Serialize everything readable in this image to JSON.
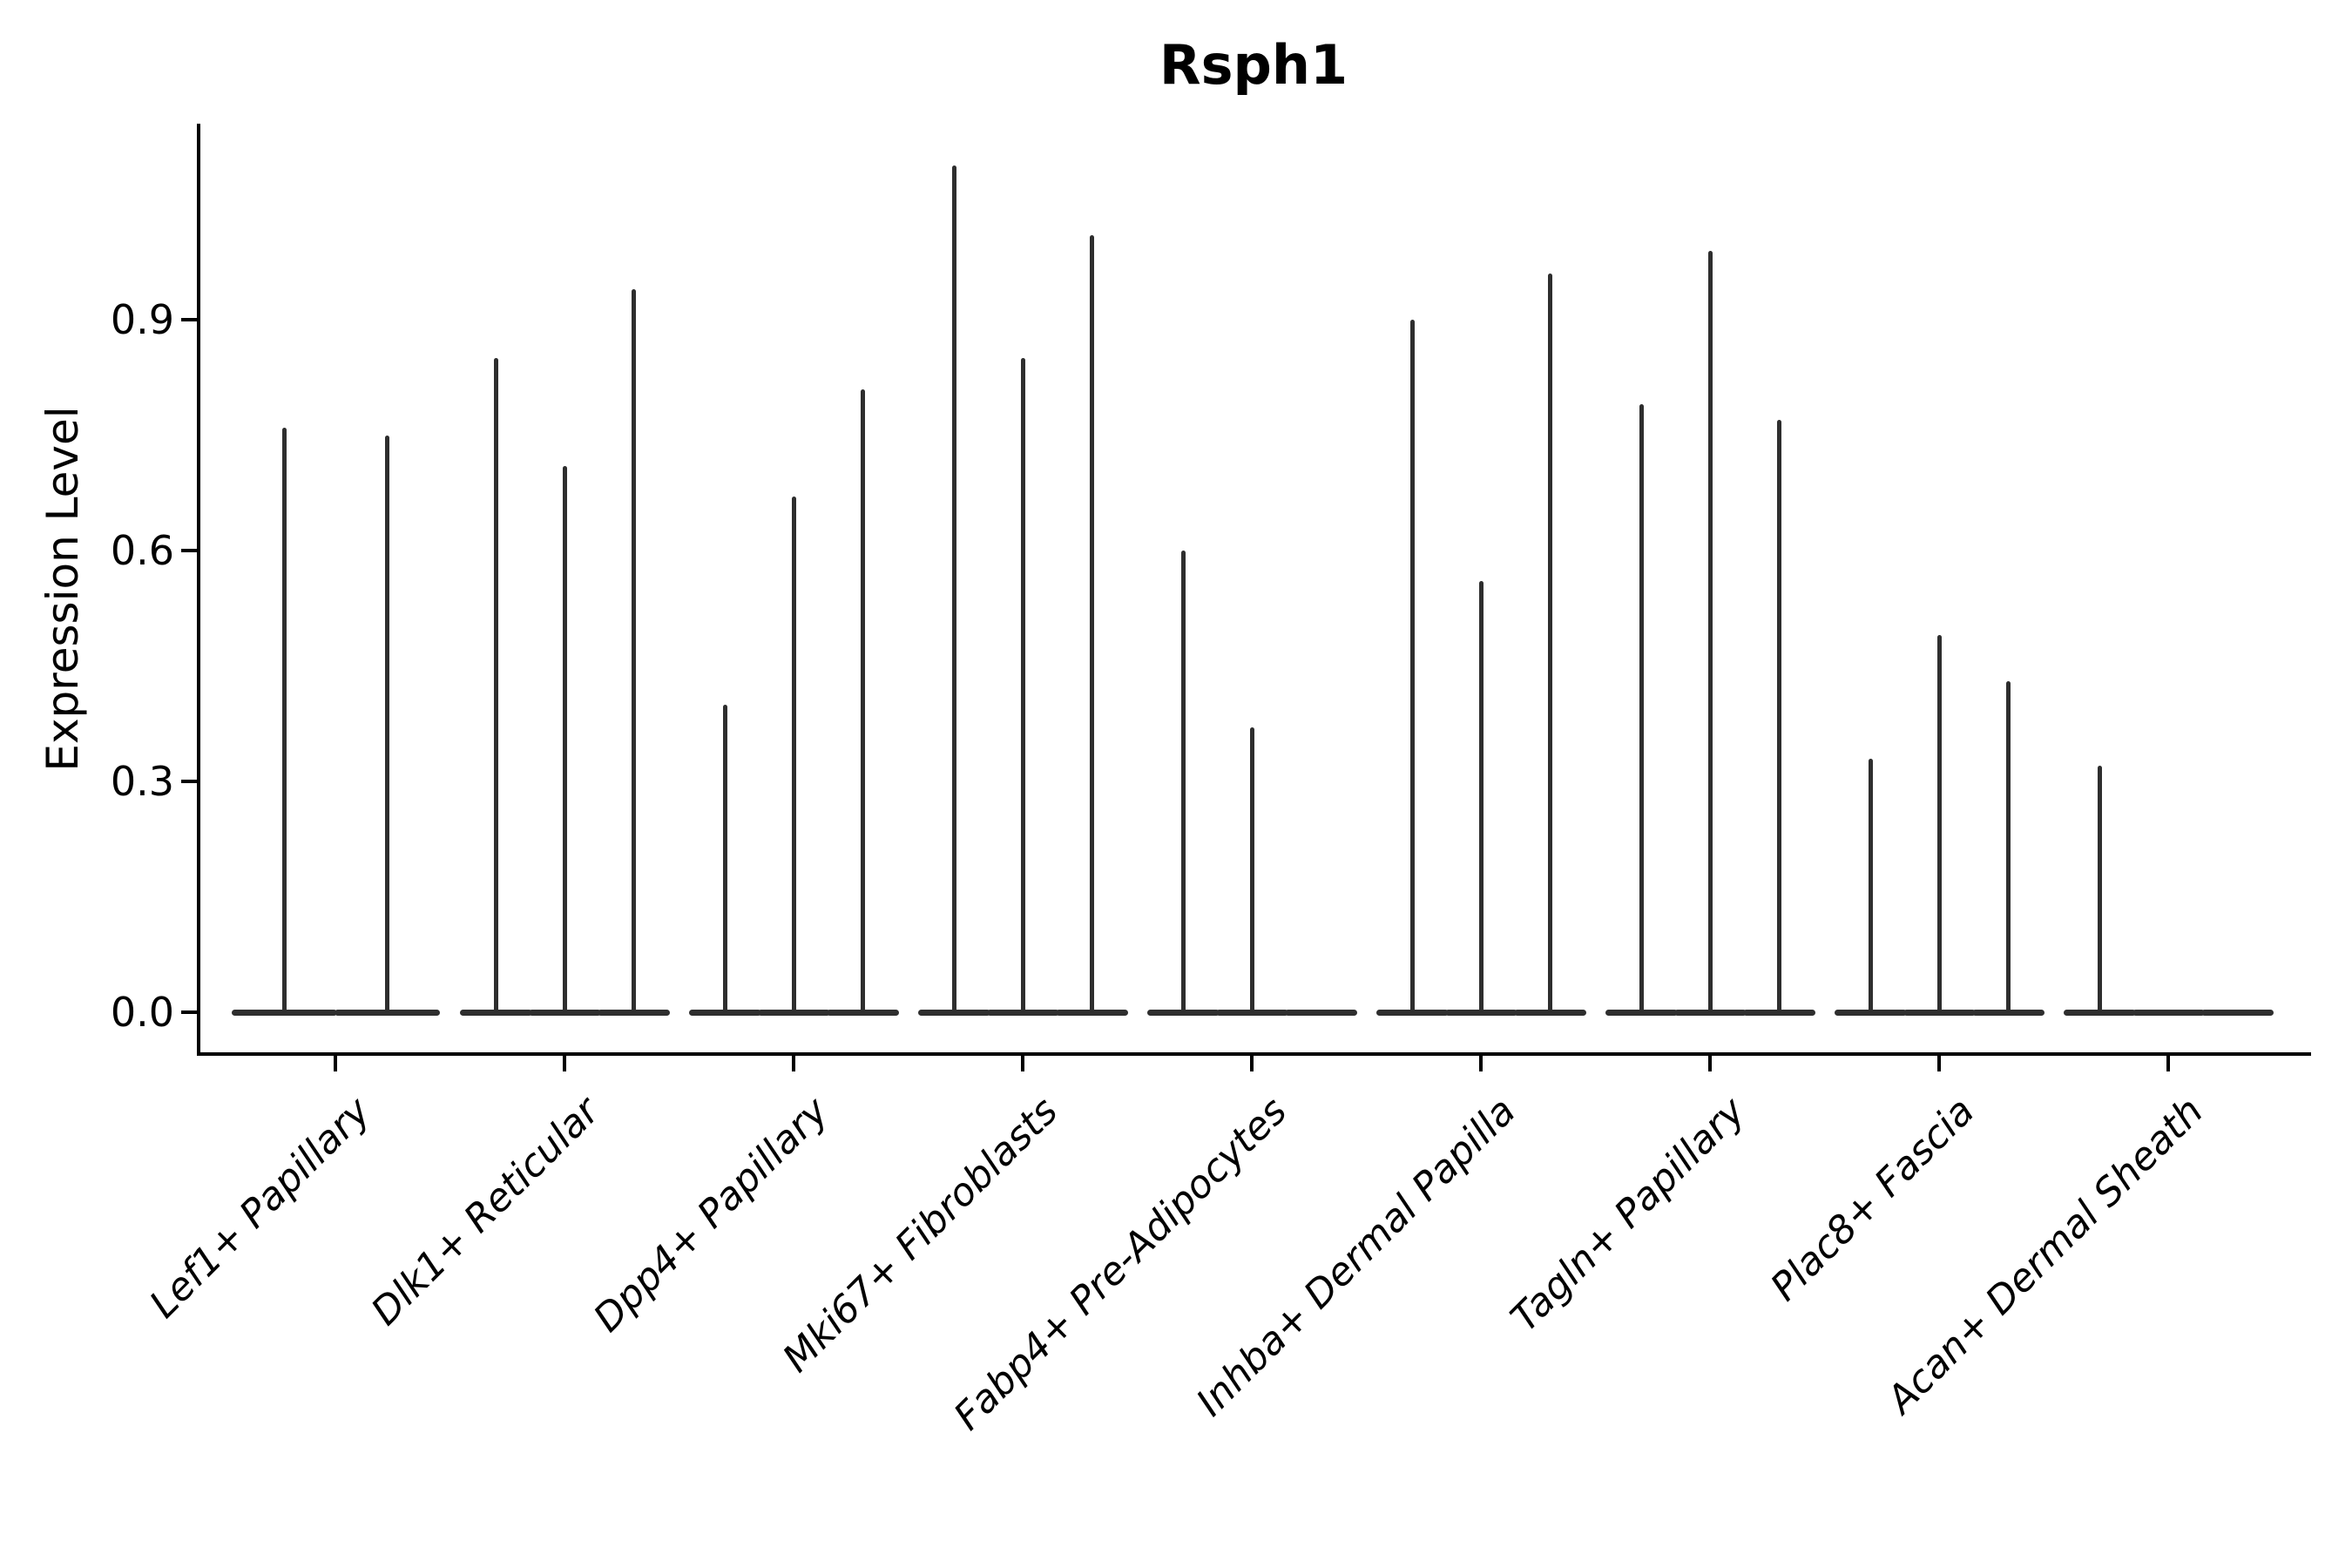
{
  "title": "Rsph1",
  "y_axis": {
    "label": "Expression Level",
    "tick_labels": [
      "0.0",
      "0.3",
      "0.6",
      "0.9"
    ],
    "tick_values": [
      0.0,
      0.3,
      0.6,
      0.9
    ]
  },
  "chart_data": {
    "type": "violin",
    "title": "Rsph1",
    "xlabel": "",
    "ylabel": "Expression Level",
    "ylim": [
      0,
      1.16
    ],
    "yticks": [
      0.0,
      0.3,
      0.6,
      0.9
    ],
    "ytick_labels": [
      "0.0",
      "0.3",
      "0.6",
      "0.9"
    ],
    "grid": false,
    "legend": "none",
    "violin_style": "needle-shaped violins (single-cell expression; density mass concentrated at 0, thin spike up to max expression)",
    "categories": [
      "Lef1+ Papillary",
      "Dlk1+ Reticular",
      "Dpp4+ Papillary",
      "Mki67+ Fibroblasts",
      "Fabp4+ Pre-Adipocytes",
      "Inhba+ Dermal Papilla",
      "Tagln+ Papillary",
      "Plac8+ Fascia",
      "Acan+ Dermal Sheath"
    ],
    "groups": [
      {
        "category": "Lef1+ Papillary",
        "violin_peak_values": [
          0.76,
          0.75
        ]
      },
      {
        "category": "Dlk1+ Reticular",
        "violin_peak_values": [
          0.85,
          0.71,
          0.94
        ]
      },
      {
        "category": "Dpp4+ Papillary",
        "violin_peak_values": [
          0.4,
          0.67,
          0.81
        ]
      },
      {
        "category": "Mki67+ Fibroblasts",
        "violin_peak_values": [
          1.1,
          0.85,
          1.01
        ]
      },
      {
        "category": "Fabp4+ Pre-Adipocytes",
        "violin_peak_values": [
          0.6,
          0.37,
          0.0
        ]
      },
      {
        "category": "Inhba+ Dermal Papilla",
        "violin_peak_values": [
          0.9,
          0.56,
          0.96
        ]
      },
      {
        "category": "Tagln+ Papillary",
        "violin_peak_values": [
          0.79,
          0.99,
          0.77
        ]
      },
      {
        "category": "Plac8+ Fascia",
        "violin_peak_values": [
          0.33,
          0.49,
          0.43
        ]
      },
      {
        "category": "Acan+ Dermal Sheath",
        "violin_peak_values": [
          0.32,
          0.0,
          0.0
        ]
      }
    ],
    "colors": {
      "violin": "#2e2e2e",
      "axis": "#000000",
      "text": "#000000",
      "background": "#ffffff"
    }
  }
}
